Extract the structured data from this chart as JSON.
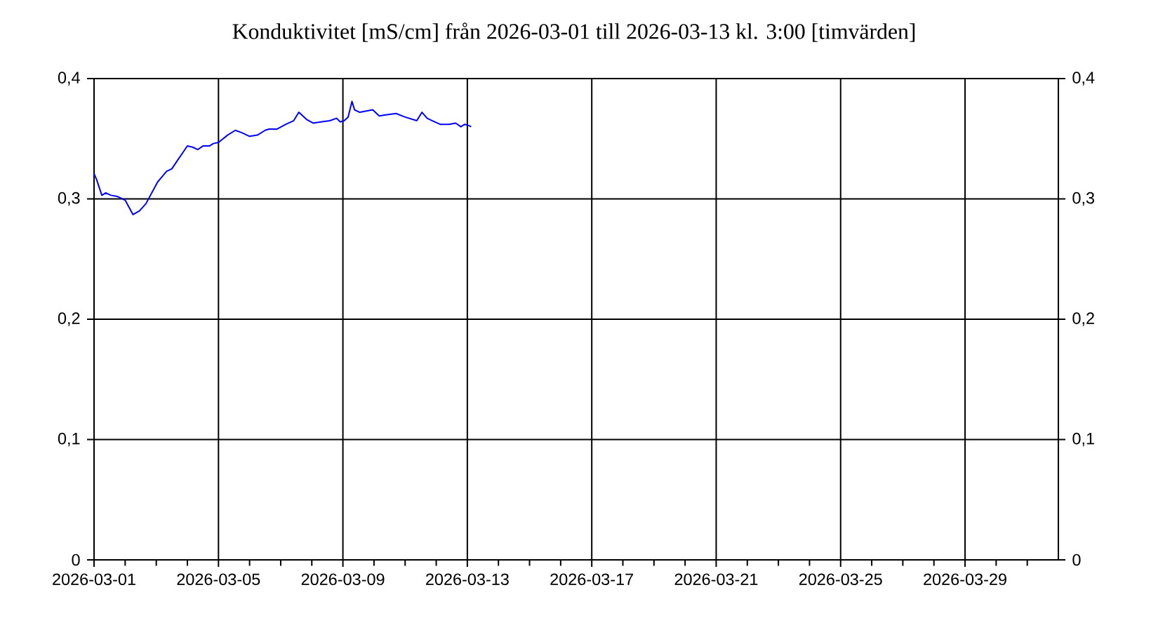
{
  "chart_data": {
    "type": "line",
    "title": "Konduktivitet [mS/cm] från 2026-03-01 till 2026-03-13 kl. 3:00 [timvärden]",
    "x": [
      "2026-03-01T00:00",
      "2026-03-01T02:00",
      "2026-03-01T06:00",
      "2026-03-01T09:00",
      "2026-03-01T13:00",
      "2026-03-01T18:00",
      "2026-03-02T00:00",
      "2026-03-02T06:00",
      "2026-03-02T11:00",
      "2026-03-02T16:00",
      "2026-03-03T01:00",
      "2026-03-03T08:00",
      "2026-03-03T12:00",
      "2026-03-03T17:00",
      "2026-03-04T00:00",
      "2026-03-04T04:00",
      "2026-03-04T08:00",
      "2026-03-04T12:00",
      "2026-03-04T17:00",
      "2026-03-04T20:00",
      "2026-03-05T00:00",
      "2026-03-05T07:00",
      "2026-03-05T13:00",
      "2026-03-05T18:00",
      "2026-03-06T00:00",
      "2026-03-06T06:00",
      "2026-03-06T12:00",
      "2026-03-06T15:00",
      "2026-03-06T21:00",
      "2026-03-07T04:00",
      "2026-03-07T10:00",
      "2026-03-07T14:00",
      "2026-03-07T17:00",
      "2026-03-07T20:00",
      "2026-03-08T01:00",
      "2026-03-08T07:00",
      "2026-03-08T14:00",
      "2026-03-08T19:00",
      "2026-03-08T22:00",
      "2026-03-09T01:00",
      "2026-03-09T04:00",
      "2026-03-09T07:00",
      "2026-03-09T09:00",
      "2026-03-09T13:00",
      "2026-03-09T18:00",
      "2026-03-09T23:00",
      "2026-03-10T04:00",
      "2026-03-10T10:00",
      "2026-03-10T17:00",
      "2026-03-11T00:00",
      "2026-03-11T09:00",
      "2026-03-11T13:00",
      "2026-03-11T17:00",
      "2026-03-11T21:00",
      "2026-03-12T03:00",
      "2026-03-12T10:00",
      "2026-03-12T15:00",
      "2026-03-12T19:00",
      "2026-03-12T22:00",
      "2026-03-13T01:00",
      "2026-03-13T03:00"
    ],
    "values": [
      0.321,
      0.316,
      0.303,
      0.305,
      0.303,
      0.302,
      0.299,
      0.287,
      0.29,
      0.296,
      0.314,
      0.323,
      0.325,
      0.333,
      0.344,
      0.343,
      0.341,
      0.344,
      0.344,
      0.346,
      0.347,
      0.353,
      0.357,
      0.355,
      0.352,
      0.353,
      0.357,
      0.358,
      0.358,
      0.362,
      0.365,
      0.372,
      0.369,
      0.366,
      0.363,
      0.364,
      0.365,
      0.367,
      0.364,
      0.365,
      0.368,
      0.381,
      0.374,
      0.372,
      0.373,
      0.374,
      0.369,
      0.37,
      0.371,
      0.368,
      0.365,
      0.372,
      0.367,
      0.365,
      0.362,
      0.362,
      0.363,
      0.36,
      0.362,
      0.361,
      0.36
    ],
    "color": "#0000ff",
    "xlim": [
      "2026-03-01",
      "2026-04-01"
    ],
    "xticks": [
      "2026-03-01",
      {
        "value": "2026-03-02",
        "label": null
      },
      {
        "value": "2026-03-03",
        "label": null
      },
      {
        "value": "2026-03-04",
        "label": null
      },
      "2026-03-05",
      {
        "value": "2026-03-06",
        "label": null
      },
      {
        "value": "2026-03-07",
        "label": null
      },
      {
        "value": "2026-03-08",
        "label": null
      },
      "2026-03-09",
      {
        "value": "2026-03-10",
        "label": null
      },
      {
        "value": "2026-03-11",
        "label": null
      },
      {
        "value": "2026-03-12",
        "label": null
      },
      "2026-03-13",
      {
        "value": "2026-03-14",
        "label": null
      },
      {
        "value": "2026-03-15",
        "label": null
      },
      {
        "value": "2026-03-16",
        "label": null
      },
      "2026-03-17",
      {
        "value": "2026-03-18",
        "label": null
      },
      {
        "value": "2026-03-19",
        "label": null
      },
      {
        "value": "2026-03-20",
        "label": null
      },
      "2026-03-21",
      {
        "value": "2026-03-22",
        "label": null
      },
      {
        "value": "2026-03-23",
        "label": null
      },
      {
        "value": "2026-03-24",
        "label": null
      },
      "2026-03-25",
      {
        "value": "2026-03-26",
        "label": null
      },
      {
        "value": "2026-03-27",
        "label": null
      },
      {
        "value": "2026-03-28",
        "label": null
      },
      "2026-03-29",
      {
        "value": "2026-03-30",
        "label": null
      },
      {
        "value": "2026-03-31",
        "label": null
      }
    ],
    "ylim": [
      0,
      0.4
    ],
    "yticks": [
      0,
      {
        "value": 0.1,
        "label": "0,1"
      },
      {
        "value": 0.2,
        "label": "0,2"
      },
      {
        "value": 0.3,
        "label": "0,3"
      },
      {
        "value": 0.4,
        "label": "0,4"
      }
    ],
    "y2lim": [
      0,
      0.4
    ],
    "y2ticks": [
      0,
      {
        "value": 0.1,
        "label": "0,1"
      },
      {
        "value": 0.2,
        "label": "0,2"
      },
      {
        "value": 0.3,
        "label": "0,3"
      },
      {
        "value": 0.4,
        "label": "0,4"
      }
    ],
    "grid": true
  }
}
